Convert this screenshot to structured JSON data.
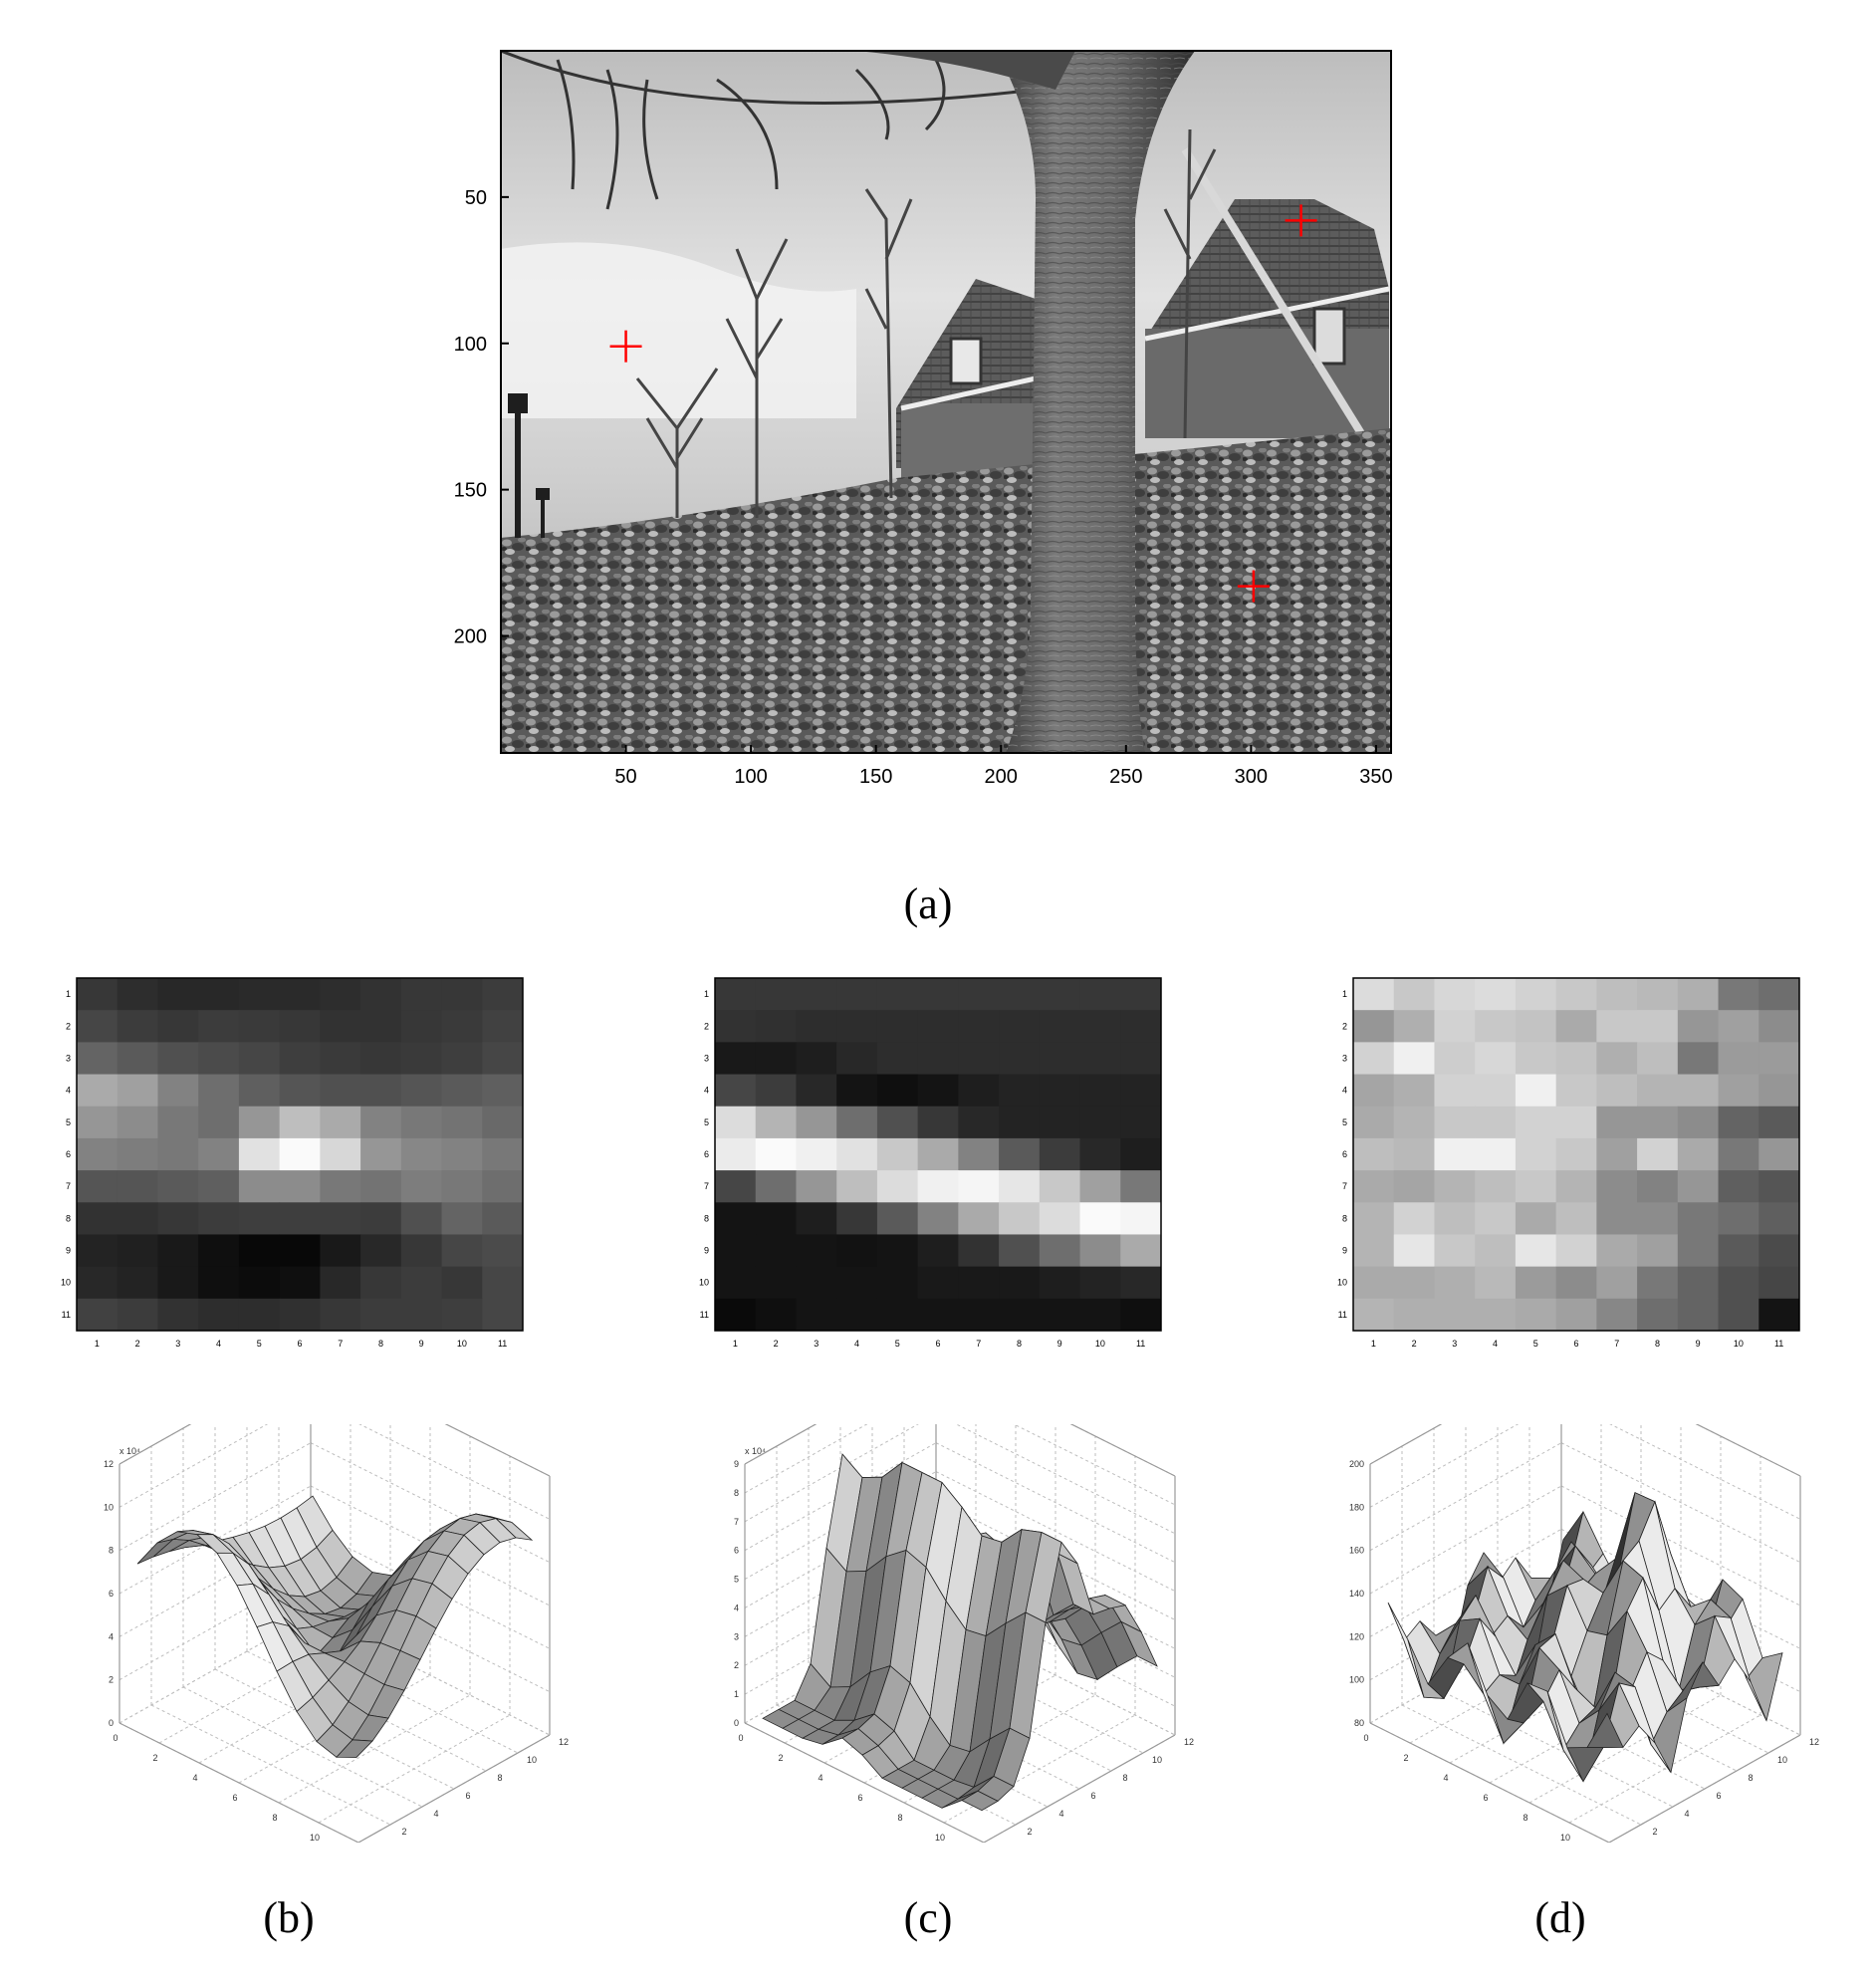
{
  "figure": {
    "captions": {
      "a": "(a)",
      "b": "(b)",
      "c": "(c)",
      "d": "(d)"
    },
    "main_image": {
      "description_visible": "grayscale photo with red cross markers",
      "x_ticks": [
        "50",
        "100",
        "150",
        "200",
        "250",
        "300",
        "350"
      ],
      "y_ticks": [
        "50",
        "100",
        "150",
        "200"
      ],
      "markers": [
        {
          "x": 50,
          "y": 101
        },
        {
          "x": 320,
          "y": 58
        },
        {
          "x": 301,
          "y": 183
        }
      ],
      "marker_color": "#ff0000",
      "xlim": [
        0,
        356
      ],
      "ylim": [
        0,
        240
      ]
    },
    "patch_ticks": [
      "1",
      "2",
      "3",
      "4",
      "5",
      "6",
      "7",
      "8",
      "9",
      "10",
      "11"
    ],
    "patches": {
      "b": [
        [
          55,
          45,
          40,
          40,
          42,
          42,
          45,
          50,
          55,
          55,
          60
        ],
        [
          70,
          60,
          55,
          60,
          58,
          55,
          50,
          50,
          55,
          58,
          65
        ],
        [
          100,
          90,
          80,
          75,
          70,
          62,
          58,
          55,
          58,
          62,
          70
        ],
        [
          170,
          160,
          130,
          110,
          95,
          85,
          80,
          80,
          85,
          90,
          95
        ],
        [
          150,
          140,
          120,
          110,
          150,
          190,
          170,
          130,
          120,
          115,
          105
        ],
        [
          130,
          125,
          120,
          130,
          225,
          250,
          215,
          150,
          135,
          130,
          120
        ],
        [
          85,
          85,
          90,
          95,
          140,
          140,
          120,
          115,
          125,
          120,
          110
        ],
        [
          50,
          50,
          55,
          60,
          62,
          62,
          62,
          60,
          80,
          100,
          90
        ],
        [
          35,
          32,
          25,
          15,
          8,
          8,
          25,
          40,
          55,
          70,
          75
        ],
        [
          40,
          35,
          25,
          15,
          12,
          15,
          40,
          55,
          60,
          55,
          70
        ],
        [
          65,
          60,
          50,
          45,
          45,
          48,
          55,
          60,
          60,
          62,
          70
        ]
      ],
      "c": [
        [
          55,
          55,
          55,
          55,
          55,
          55,
          55,
          55,
          55,
          55,
          55
        ],
        [
          50,
          48,
          45,
          45,
          45,
          45,
          45,
          45,
          45,
          45,
          45
        ],
        [
          25,
          25,
          30,
          40,
          45,
          45,
          45,
          45,
          45,
          45,
          45
        ],
        [
          70,
          60,
          40,
          20,
          15,
          20,
          30,
          35,
          35,
          35,
          35
        ],
        [
          220,
          180,
          150,
          110,
          80,
          55,
          40,
          35,
          35,
          35,
          35
        ],
        [
          235,
          250,
          240,
          225,
          200,
          170,
          130,
          90,
          60,
          40,
          30
        ],
        [
          70,
          110,
          150,
          190,
          220,
          240,
          245,
          230,
          200,
          160,
          120
        ],
        [
          20,
          20,
          30,
          55,
          90,
          130,
          170,
          200,
          220,
          250,
          245
        ],
        [
          20,
          20,
          20,
          18,
          20,
          30,
          50,
          80,
          110,
          140,
          170
        ],
        [
          20,
          20,
          20,
          20,
          20,
          25,
          25,
          25,
          30,
          35,
          40
        ],
        [
          10,
          15,
          20,
          20,
          20,
          20,
          20,
          20,
          20,
          20,
          15
        ]
      ],
      "d": [
        [
          220,
          200,
          215,
          220,
          210,
          200,
          190,
          185,
          175,
          120,
          110
        ],
        [
          150,
          175,
          210,
          200,
          195,
          170,
          200,
          200,
          150,
          160,
          140
        ],
        [
          210,
          240,
          205,
          215,
          200,
          195,
          175,
          190,
          120,
          155,
          155
        ],
        [
          165,
          175,
          210,
          210,
          240,
          200,
          190,
          180,
          180,
          160,
          150
        ],
        [
          170,
          180,
          200,
          200,
          210,
          210,
          150,
          150,
          140,
          100,
          90
        ],
        [
          190,
          185,
          240,
          240,
          210,
          200,
          160,
          210,
          170,
          120,
          150
        ],
        [
          170,
          165,
          180,
          190,
          200,
          180,
          140,
          130,
          150,
          95,
          85
        ],
        [
          180,
          210,
          190,
          200,
          170,
          190,
          140,
          140,
          120,
          110,
          95
        ],
        [
          180,
          230,
          200,
          190,
          230,
          210,
          170,
          160,
          120,
          90,
          75
        ],
        [
          170,
          170,
          175,
          185,
          155,
          140,
          160,
          120,
          100,
          80,
          70
        ],
        [
          180,
          175,
          175,
          175,
          170,
          160,
          135,
          110,
          100,
          80,
          20
        ]
      ]
    },
    "surfaces": {
      "b": {
        "z_exp": "x 10⁴",
        "z_ticks": [
          "0",
          "2",
          "4",
          "6",
          "8",
          "10",
          "12"
        ],
        "x_ticks": [
          "0",
          "2",
          "4",
          "6",
          "8",
          "10",
          "12"
        ],
        "y_ticks": [
          "0",
          "2",
          "4",
          "6",
          "8",
          "10",
          "12"
        ]
      },
      "c": {
        "z_exp": "x 10⁴",
        "z_ticks": [
          "0",
          "1",
          "2",
          "3",
          "4",
          "5",
          "6",
          "7",
          "8",
          "9"
        ],
        "x_ticks": [
          "0",
          "2",
          "4",
          "6",
          "8",
          "10",
          "12"
        ],
        "y_ticks": [
          "0",
          "2",
          "4",
          "6",
          "8",
          "10",
          "12"
        ]
      },
      "d": {
        "z_exp": "",
        "z_ticks": [
          "80",
          "100",
          "120",
          "140",
          "160",
          "180",
          "200"
        ],
        "x_ticks": [
          "0",
          "2",
          "4",
          "6",
          "8",
          "10",
          "12"
        ],
        "y_ticks": [
          "0",
          "2",
          "4",
          "6",
          "8",
          "10",
          "12"
        ]
      }
    }
  }
}
